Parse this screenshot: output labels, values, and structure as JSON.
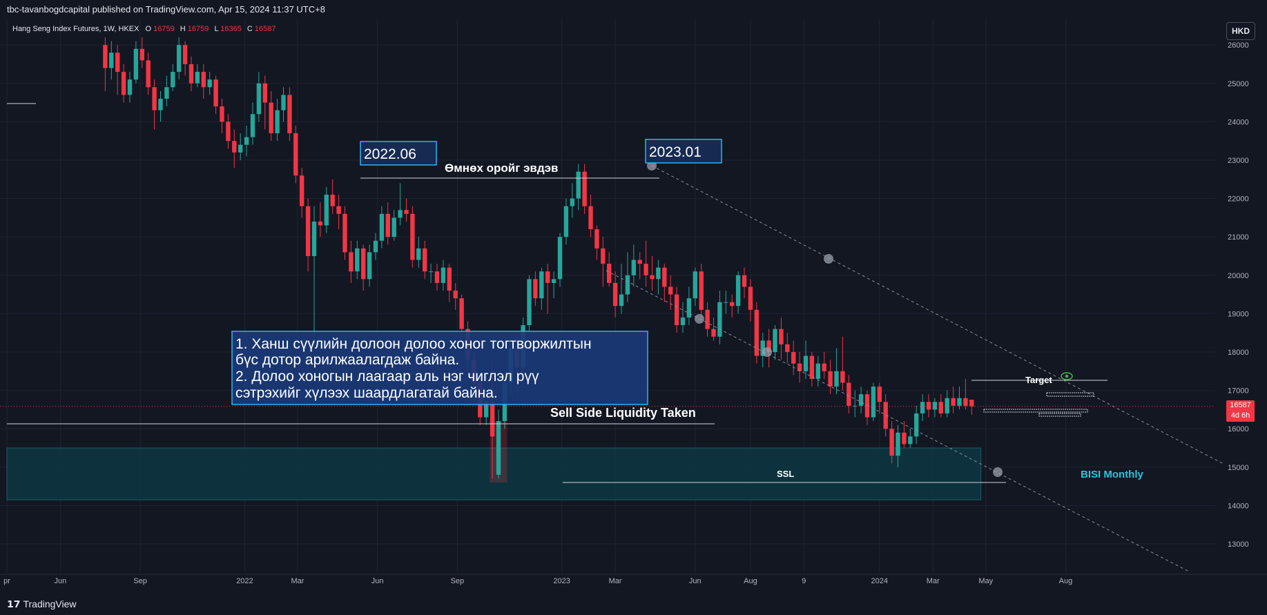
{
  "header": {
    "published": "tbc-tavanbogdcapital published on TradingView.com, Apr 15, 2024 11:37 UTC+8"
  },
  "footer": {
    "logo_mark": "𝟭𝟳",
    "logo_text": "TradingView"
  },
  "currency": "HKD",
  "last_price": {
    "value": "16587",
    "countdown": "4d 6h"
  },
  "colors": {
    "up": "#26a69a",
    "down": "#f23645",
    "background": "#131722",
    "zone": "#0e3a44",
    "annotation_box": "#1e3a6e",
    "annotation_border": "#29b6f6",
    "bisi_text": "#26c6da"
  },
  "symbol": {
    "name": "Hang Seng Index Futures, 1W, HKEX",
    "o_label": "O",
    "o": "16759",
    "h_label": "H",
    "h": "16759",
    "l_label": "L",
    "l": "16365",
    "c_label": "C",
    "c": "16587"
  },
  "annotations": {
    "label_2022": "2022.06",
    "label_2023": "2023.01",
    "break_text": "Өмнөх оройг эвдэв",
    "note_line1": "1. Ханш сүүлийн долоон долоо хоног тогтворжилтын",
    "note_line2": "бүс дотор арилжаалагдаж байна.",
    "note_line3": "2. Долоо хоногын лаагаар аль нэг чиглэл рүү",
    "note_line4": "сэтрэхийг хүлээх шаардлагатай байна.",
    "ssl_taken": "Sell Side Liquidity Taken",
    "ssl": "SSL",
    "target": "Target",
    "bisi": "BISI Monthly"
  },
  "chart_data": {
    "type": "candlestick",
    "title": "Hang Seng Index Futures, 1W, HKEX",
    "ylim": [
      12300,
      26200
    ],
    "y_ticks": [
      13000,
      14000,
      15000,
      16000,
      17000,
      18000,
      19000,
      20000,
      21000,
      22000,
      23000,
      24000,
      25000,
      26000
    ],
    "x_ticks": [
      {
        "label": "pr",
        "week": 0
      },
      {
        "label": "Jun",
        "week": 8.7
      },
      {
        "label": "Sep",
        "week": 21.7
      },
      {
        "label": "2022",
        "week": 38.7
      },
      {
        "label": "Mar",
        "week": 47.3
      },
      {
        "label": "Jun",
        "week": 60.3
      },
      {
        "label": "Sep",
        "week": 73.3
      },
      {
        "label": "2023",
        "week": 90.3
      },
      {
        "label": "Mar",
        "week": 99
      },
      {
        "label": "Jun",
        "week": 112
      },
      {
        "label": "Aug",
        "week": 121
      },
      {
        "label": "9",
        "week": 129.7
      },
      {
        "label": "2024",
        "week": 142
      },
      {
        "label": "Mar",
        "week": 150.7
      },
      {
        "label": "May",
        "week": 159.3
      },
      {
        "label": "Aug",
        "week": 172.3
      }
    ],
    "grid": true,
    "last_price": 16587,
    "candles": [
      {
        "w": 16,
        "o": 26000,
        "c": 25400,
        "h": 26200,
        "l": 24800
      },
      {
        "w": 17,
        "o": 25400,
        "c": 25800,
        "h": 26100,
        "l": 25100
      },
      {
        "w": 18,
        "o": 25800,
        "c": 25300,
        "h": 26000,
        "l": 24700
      },
      {
        "w": 19,
        "o": 25300,
        "c": 24700,
        "h": 25500,
        "l": 24500
      },
      {
        "w": 20,
        "o": 24700,
        "c": 25100,
        "h": 25300,
        "l": 24500
      },
      {
        "w": 21,
        "o": 25100,
        "c": 25900,
        "h": 26100,
        "l": 25000
      },
      {
        "w": 22,
        "o": 25900,
        "c": 25600,
        "h": 26200,
        "l": 25400
      },
      {
        "w": 23,
        "o": 25600,
        "c": 24900,
        "h": 25800,
        "l": 24700
      },
      {
        "w": 24,
        "o": 24900,
        "c": 24300,
        "h": 25100,
        "l": 23800
      },
      {
        "w": 25,
        "o": 24300,
        "c": 24600,
        "h": 24800,
        "l": 24000
      },
      {
        "w": 26,
        "o": 24600,
        "c": 24900,
        "h": 25200,
        "l": 24400
      },
      {
        "w": 27,
        "o": 24900,
        "c": 25300,
        "h": 25500,
        "l": 24800
      },
      {
        "w": 28,
        "o": 25300,
        "c": 26000,
        "h": 26200,
        "l": 25100
      },
      {
        "w": 29,
        "o": 26000,
        "c": 25500,
        "h": 26100,
        "l": 25200
      },
      {
        "w": 30,
        "o": 25500,
        "c": 25000,
        "h": 25700,
        "l": 24800
      },
      {
        "w": 31,
        "o": 25000,
        "c": 25300,
        "h": 25500,
        "l": 24900
      },
      {
        "w": 32,
        "o": 25300,
        "c": 24900,
        "h": 25500,
        "l": 24600
      },
      {
        "w": 33,
        "o": 24900,
        "c": 25100,
        "h": 25300,
        "l": 24700
      },
      {
        "w": 34,
        "o": 25100,
        "c": 24400,
        "h": 25200,
        "l": 24200
      },
      {
        "w": 35,
        "o": 24400,
        "c": 24000,
        "h": 24600,
        "l": 23700
      },
      {
        "w": 36,
        "o": 24000,
        "c": 23500,
        "h": 24200,
        "l": 23300
      },
      {
        "w": 37,
        "o": 23500,
        "c": 23200,
        "h": 23800,
        "l": 22800
      },
      {
        "w": 38,
        "o": 23200,
        "c": 23400,
        "h": 23700,
        "l": 23000
      },
      {
        "w": 39,
        "o": 23400,
        "c": 23600,
        "h": 23900,
        "l": 23100
      },
      {
        "w": 40,
        "o": 23600,
        "c": 24200,
        "h": 24500,
        "l": 23400
      },
      {
        "w": 41,
        "o": 24200,
        "c": 25000,
        "h": 25300,
        "l": 24000
      },
      {
        "w": 42,
        "o": 25000,
        "c": 24500,
        "h": 25200,
        "l": 23800
      },
      {
        "w": 43,
        "o": 24500,
        "c": 23700,
        "h": 24800,
        "l": 23500
      },
      {
        "w": 44,
        "o": 23700,
        "c": 24300,
        "h": 24600,
        "l": 23500
      },
      {
        "w": 45,
        "o": 24300,
        "c": 24700,
        "h": 24900,
        "l": 24000
      },
      {
        "w": 46,
        "o": 24700,
        "c": 23700,
        "h": 24900,
        "l": 23500
      },
      {
        "w": 47,
        "o": 23700,
        "c": 22600,
        "h": 23900,
        "l": 22400
      },
      {
        "w": 48,
        "o": 22600,
        "c": 21800,
        "h": 22800,
        "l": 21500
      },
      {
        "w": 49,
        "o": 21800,
        "c": 20500,
        "h": 22000,
        "l": 20100
      },
      {
        "w": 50,
        "o": 20500,
        "c": 21400,
        "h": 21800,
        "l": 18300
      },
      {
        "w": 51,
        "o": 21400,
        "c": 21300,
        "h": 21900,
        "l": 21000
      },
      {
        "w": 52,
        "o": 21300,
        "c": 22100,
        "h": 22300,
        "l": 21100
      },
      {
        "w": 53,
        "o": 22100,
        "c": 21800,
        "h": 22500,
        "l": 21600
      },
      {
        "w": 54,
        "o": 21800,
        "c": 21600,
        "h": 22100,
        "l": 21200
      },
      {
        "w": 55,
        "o": 21600,
        "c": 20600,
        "h": 21800,
        "l": 20400
      },
      {
        "w": 56,
        "o": 20600,
        "c": 20100,
        "h": 20900,
        "l": 19800
      },
      {
        "w": 57,
        "o": 20100,
        "c": 20700,
        "h": 20900,
        "l": 19900
      },
      {
        "w": 58,
        "o": 20700,
        "c": 19900,
        "h": 20800,
        "l": 19600
      },
      {
        "w": 59,
        "o": 19900,
        "c": 20600,
        "h": 20800,
        "l": 19700
      },
      {
        "w": 60,
        "o": 20600,
        "c": 20900,
        "h": 21100,
        "l": 20400
      },
      {
        "w": 61,
        "o": 20900,
        "c": 21600,
        "h": 21800,
        "l": 20700
      },
      {
        "w": 62,
        "o": 21600,
        "c": 21000,
        "h": 21900,
        "l": 20800
      },
      {
        "w": 63,
        "o": 21000,
        "c": 21500,
        "h": 21700,
        "l": 20900
      },
      {
        "w": 64,
        "o": 21500,
        "c": 21700,
        "h": 22400,
        "l": 21300
      },
      {
        "w": 65,
        "o": 21700,
        "c": 21600,
        "h": 22000,
        "l": 21400
      },
      {
        "w": 66,
        "o": 21600,
        "c": 20400,
        "h": 21800,
        "l": 20200
      },
      {
        "w": 67,
        "o": 20400,
        "c": 20700,
        "h": 21000,
        "l": 20200
      },
      {
        "w": 68,
        "o": 20700,
        "c": 20100,
        "h": 20900,
        "l": 19900
      },
      {
        "w": 69,
        "o": 20100,
        "c": 20100,
        "h": 20300,
        "l": 19800
      },
      {
        "w": 70,
        "o": 20100,
        "c": 19800,
        "h": 20300,
        "l": 19600
      },
      {
        "w": 71,
        "o": 19800,
        "c": 20200,
        "h": 20400,
        "l": 19600
      },
      {
        "w": 72,
        "o": 20200,
        "c": 19600,
        "h": 20300,
        "l": 19300
      },
      {
        "w": 73,
        "o": 19600,
        "c": 19400,
        "h": 19800,
        "l": 19100
      },
      {
        "w": 74,
        "o": 19400,
        "c": 18600,
        "h": 19500,
        "l": 18300
      },
      {
        "w": 75,
        "o": 18600,
        "c": 17800,
        "h": 18800,
        "l": 17500
      },
      {
        "w": 76,
        "o": 17800,
        "c": 17200,
        "h": 18000,
        "l": 16700
      },
      {
        "w": 77,
        "o": 17200,
        "c": 16300,
        "h": 17400,
        "l": 16100
      },
      {
        "w": 78,
        "o": 16300,
        "c": 16700,
        "h": 17000,
        "l": 16100
      },
      {
        "w": 79,
        "o": 16700,
        "c": 15800,
        "h": 17800,
        "l": 14700
      },
      {
        "w": 80,
        "o": 14800,
        "c": 16200,
        "h": 16500,
        "l": 14700
      },
      {
        "w": 81,
        "o": 16200,
        "c": 17200,
        "h": 17500,
        "l": 16000
      },
      {
        "w": 82,
        "o": 17200,
        "c": 18100,
        "h": 18300,
        "l": 16900
      },
      {
        "w": 83,
        "o": 18100,
        "c": 17600,
        "h": 18400,
        "l": 16800
      },
      {
        "w": 84,
        "o": 17600,
        "c": 18700,
        "h": 18900,
        "l": 17400
      },
      {
        "w": 85,
        "o": 18700,
        "c": 19900,
        "h": 20000,
        "l": 18500
      },
      {
        "w": 86,
        "o": 19900,
        "c": 19400,
        "h": 20100,
        "l": 19200
      },
      {
        "w": 87,
        "o": 19400,
        "c": 20100,
        "h": 20200,
        "l": 19100
      },
      {
        "w": 88,
        "o": 20100,
        "c": 19800,
        "h": 20300,
        "l": 19000
      },
      {
        "w": 89,
        "o": 19800,
        "c": 19900,
        "h": 20100,
        "l": 19400
      },
      {
        "w": 90,
        "o": 19900,
        "c": 21000,
        "h": 21100,
        "l": 19700
      },
      {
        "w": 91,
        "o": 21000,
        "c": 21800,
        "h": 22000,
        "l": 20800
      },
      {
        "w": 92,
        "o": 21800,
        "c": 22000,
        "h": 22400,
        "l": 21500
      },
      {
        "w": 93,
        "o": 22000,
        "c": 22700,
        "h": 22900,
        "l": 21700
      },
      {
        "w": 94,
        "o": 22700,
        "c": 21800,
        "h": 22900,
        "l": 21600
      },
      {
        "w": 95,
        "o": 21800,
        "c": 21200,
        "h": 22100,
        "l": 21000
      },
      {
        "w": 96,
        "o": 21200,
        "c": 20700,
        "h": 21300,
        "l": 20400
      },
      {
        "w": 97,
        "o": 20700,
        "c": 20300,
        "h": 21000,
        "l": 19700
      },
      {
        "w": 98,
        "o": 20300,
        "c": 19800,
        "h": 20600,
        "l": 19700
      },
      {
        "w": 99,
        "o": 19800,
        "c": 19200,
        "h": 20100,
        "l": 18900
      },
      {
        "w": 100,
        "o": 19200,
        "c": 19500,
        "h": 20300,
        "l": 19000
      },
      {
        "w": 101,
        "o": 19500,
        "c": 20000,
        "h": 20600,
        "l": 19300
      },
      {
        "w": 102,
        "o": 20000,
        "c": 20400,
        "h": 20800,
        "l": 19700
      },
      {
        "w": 103,
        "o": 20400,
        "c": 20300,
        "h": 20600,
        "l": 19900
      },
      {
        "w": 104,
        "o": 20300,
        "c": 20000,
        "h": 20900,
        "l": 19700
      },
      {
        "w": 105,
        "o": 20000,
        "c": 19900,
        "h": 20500,
        "l": 19600
      },
      {
        "w": 106,
        "o": 19900,
        "c": 20200,
        "h": 20400,
        "l": 19500
      },
      {
        "w": 107,
        "o": 20200,
        "c": 19700,
        "h": 20300,
        "l": 19300
      },
      {
        "w": 108,
        "o": 19700,
        "c": 19500,
        "h": 20000,
        "l": 19100
      },
      {
        "w": 109,
        "o": 19500,
        "c": 18700,
        "h": 19700,
        "l": 18500
      },
      {
        "w": 110,
        "o": 18700,
        "c": 18900,
        "h": 19300,
        "l": 18500
      },
      {
        "w": 111,
        "o": 18900,
        "c": 19400,
        "h": 19700,
        "l": 18700
      },
      {
        "w": 112,
        "o": 19400,
        "c": 20100,
        "h": 20200,
        "l": 19200
      },
      {
        "w": 113,
        "o": 20100,
        "c": 19100,
        "h": 20300,
        "l": 18900
      },
      {
        "w": 114,
        "o": 19100,
        "c": 18600,
        "h": 19300,
        "l": 18400
      },
      {
        "w": 115,
        "o": 18600,
        "c": 18400,
        "h": 18900,
        "l": 18300
      },
      {
        "w": 116,
        "o": 18400,
        "c": 19300,
        "h": 19600,
        "l": 18200
      },
      {
        "w": 117,
        "o": 19300,
        "c": 19300,
        "h": 19600,
        "l": 19000
      },
      {
        "w": 118,
        "o": 19300,
        "c": 19200,
        "h": 19500,
        "l": 18900
      },
      {
        "w": 119,
        "o": 19200,
        "c": 20000,
        "h": 20100,
        "l": 19000
      },
      {
        "w": 120,
        "o": 20000,
        "c": 19700,
        "h": 20200,
        "l": 19400
      },
      {
        "w": 121,
        "o": 19700,
        "c": 19100,
        "h": 19900,
        "l": 18800
      },
      {
        "w": 122,
        "o": 19100,
        "c": 17900,
        "h": 19300,
        "l": 17700
      },
      {
        "w": 123,
        "o": 17900,
        "c": 18300,
        "h": 18500,
        "l": 17600
      },
      {
        "w": 124,
        "o": 18300,
        "c": 18000,
        "h": 18600,
        "l": 17600
      },
      {
        "w": 125,
        "o": 18000,
        "c": 18600,
        "h": 18700,
        "l": 17800
      },
      {
        "w": 126,
        "o": 18600,
        "c": 18200,
        "h": 18900,
        "l": 17800
      },
      {
        "w": 127,
        "o": 18200,
        "c": 18000,
        "h": 18500,
        "l": 17700
      },
      {
        "w": 128,
        "o": 18000,
        "c": 17700,
        "h": 18300,
        "l": 17400
      },
      {
        "w": 129,
        "o": 17700,
        "c": 17500,
        "h": 18000,
        "l": 17200
      },
      {
        "w": 130,
        "o": 17500,
        "c": 17900,
        "h": 18300,
        "l": 17300
      },
      {
        "w": 131,
        "o": 17900,
        "c": 17300,
        "h": 18000,
        "l": 17100
      },
      {
        "w": 132,
        "o": 17300,
        "c": 17700,
        "h": 17900,
        "l": 17100
      },
      {
        "w": 133,
        "o": 17700,
        "c": 17500,
        "h": 18000,
        "l": 17300
      },
      {
        "w": 134,
        "o": 17500,
        "c": 17100,
        "h": 17800,
        "l": 16900
      },
      {
        "w": 135,
        "o": 17100,
        "c": 17500,
        "h": 18100,
        "l": 16900
      },
      {
        "w": 136,
        "o": 17500,
        "c": 17200,
        "h": 18400,
        "l": 17000
      },
      {
        "w": 137,
        "o": 17200,
        "c": 16600,
        "h": 17400,
        "l": 16400
      },
      {
        "w": 138,
        "o": 16600,
        "c": 16600,
        "h": 17000,
        "l": 16300
      },
      {
        "w": 139,
        "o": 16600,
        "c": 16900,
        "h": 17100,
        "l": 16400
      },
      {
        "w": 140,
        "o": 16900,
        "c": 16300,
        "h": 17000,
        "l": 16100
      },
      {
        "w": 141,
        "o": 16300,
        "c": 17100,
        "h": 17200,
        "l": 16200
      },
      {
        "w": 142,
        "o": 17100,
        "c": 16700,
        "h": 17200,
        "l": 16400
      },
      {
        "w": 143,
        "o": 16700,
        "c": 16000,
        "h": 16900,
        "l": 15800
      },
      {
        "w": 144,
        "o": 16000,
        "c": 15300,
        "h": 16200,
        "l": 15100
      },
      {
        "w": 145,
        "o": 15300,
        "c": 15900,
        "h": 16100,
        "l": 15000
      },
      {
        "w": 146,
        "o": 15900,
        "c": 15600,
        "h": 16200,
        "l": 15500
      },
      {
        "w": 147,
        "o": 15600,
        "c": 15800,
        "h": 16000,
        "l": 15500
      },
      {
        "w": 148,
        "o": 15800,
        "c": 16400,
        "h": 16600,
        "l": 15600
      },
      {
        "w": 149,
        "o": 16400,
        "c": 16700,
        "h": 16900,
        "l": 16200
      },
      {
        "w": 150,
        "o": 16700,
        "c": 16500,
        "h": 16900,
        "l": 16300
      },
      {
        "w": 151,
        "o": 16500,
        "c": 16700,
        "h": 16800,
        "l": 16300
      },
      {
        "w": 152,
        "o": 16700,
        "c": 16400,
        "h": 16900,
        "l": 16300
      },
      {
        "w": 153,
        "o": 16400,
        "c": 16800,
        "h": 17000,
        "l": 16300
      },
      {
        "w": 154,
        "o": 16800,
        "c": 16600,
        "h": 17100,
        "l": 16400
      },
      {
        "w": 155,
        "o": 16600,
        "c": 16800,
        "h": 17100,
        "l": 16500
      },
      {
        "w": 156,
        "o": 16800,
        "c": 16600,
        "h": 17300,
        "l": 16500
      },
      {
        "w": 157,
        "o": 16759,
        "c": 16587,
        "h": 16759,
        "l": 16365
      }
    ]
  }
}
